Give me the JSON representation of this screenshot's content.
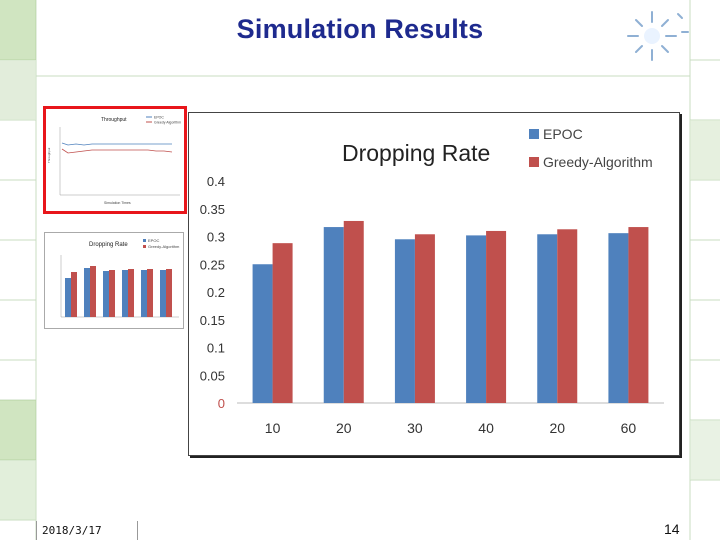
{
  "slide": {
    "title": "Simulation Results",
    "date": "2018/3/17",
    "page_number": "14"
  },
  "colors": {
    "title": "#1e2a8e",
    "series1": "#4f81bd",
    "series2": "#c0504d",
    "thumb_border": "#e8161b",
    "grid_bg": "#d9ead3"
  },
  "thumbnails": {
    "throughput": {
      "title": "Throughput",
      "legend": [
        "EPOC",
        "Greedy Algorithm"
      ],
      "x_label": "Simulation Times",
      "y_label": "Throughput"
    },
    "dropping": {
      "title": "Dropping Rate",
      "legend": [
        "EPOC",
        "Greedy-Algorithm"
      ]
    }
  },
  "chart_data": {
    "type": "bar",
    "title": "Dropping Rate",
    "categories": [
      "10",
      "20",
      "30",
      "40",
      "20",
      "60"
    ],
    "series": [
      {
        "name": "EPOC",
        "values": [
          0.25,
          0.317,
          0.295,
          0.302,
          0.304,
          0.306
        ]
      },
      {
        "name": "Greedy-Algorithm",
        "values": [
          0.288,
          0.328,
          0.304,
          0.31,
          0.313,
          0.317
        ]
      }
    ],
    "ylim": [
      0,
      0.4
    ],
    "yticks": [
      "0",
      "0.05",
      "0.1",
      "0.15",
      "0.2",
      "0.25",
      "0.3",
      "0.35",
      "0.4"
    ],
    "xlabel": "",
    "ylabel": "",
    "grid": false,
    "legend_position": "top-right"
  }
}
